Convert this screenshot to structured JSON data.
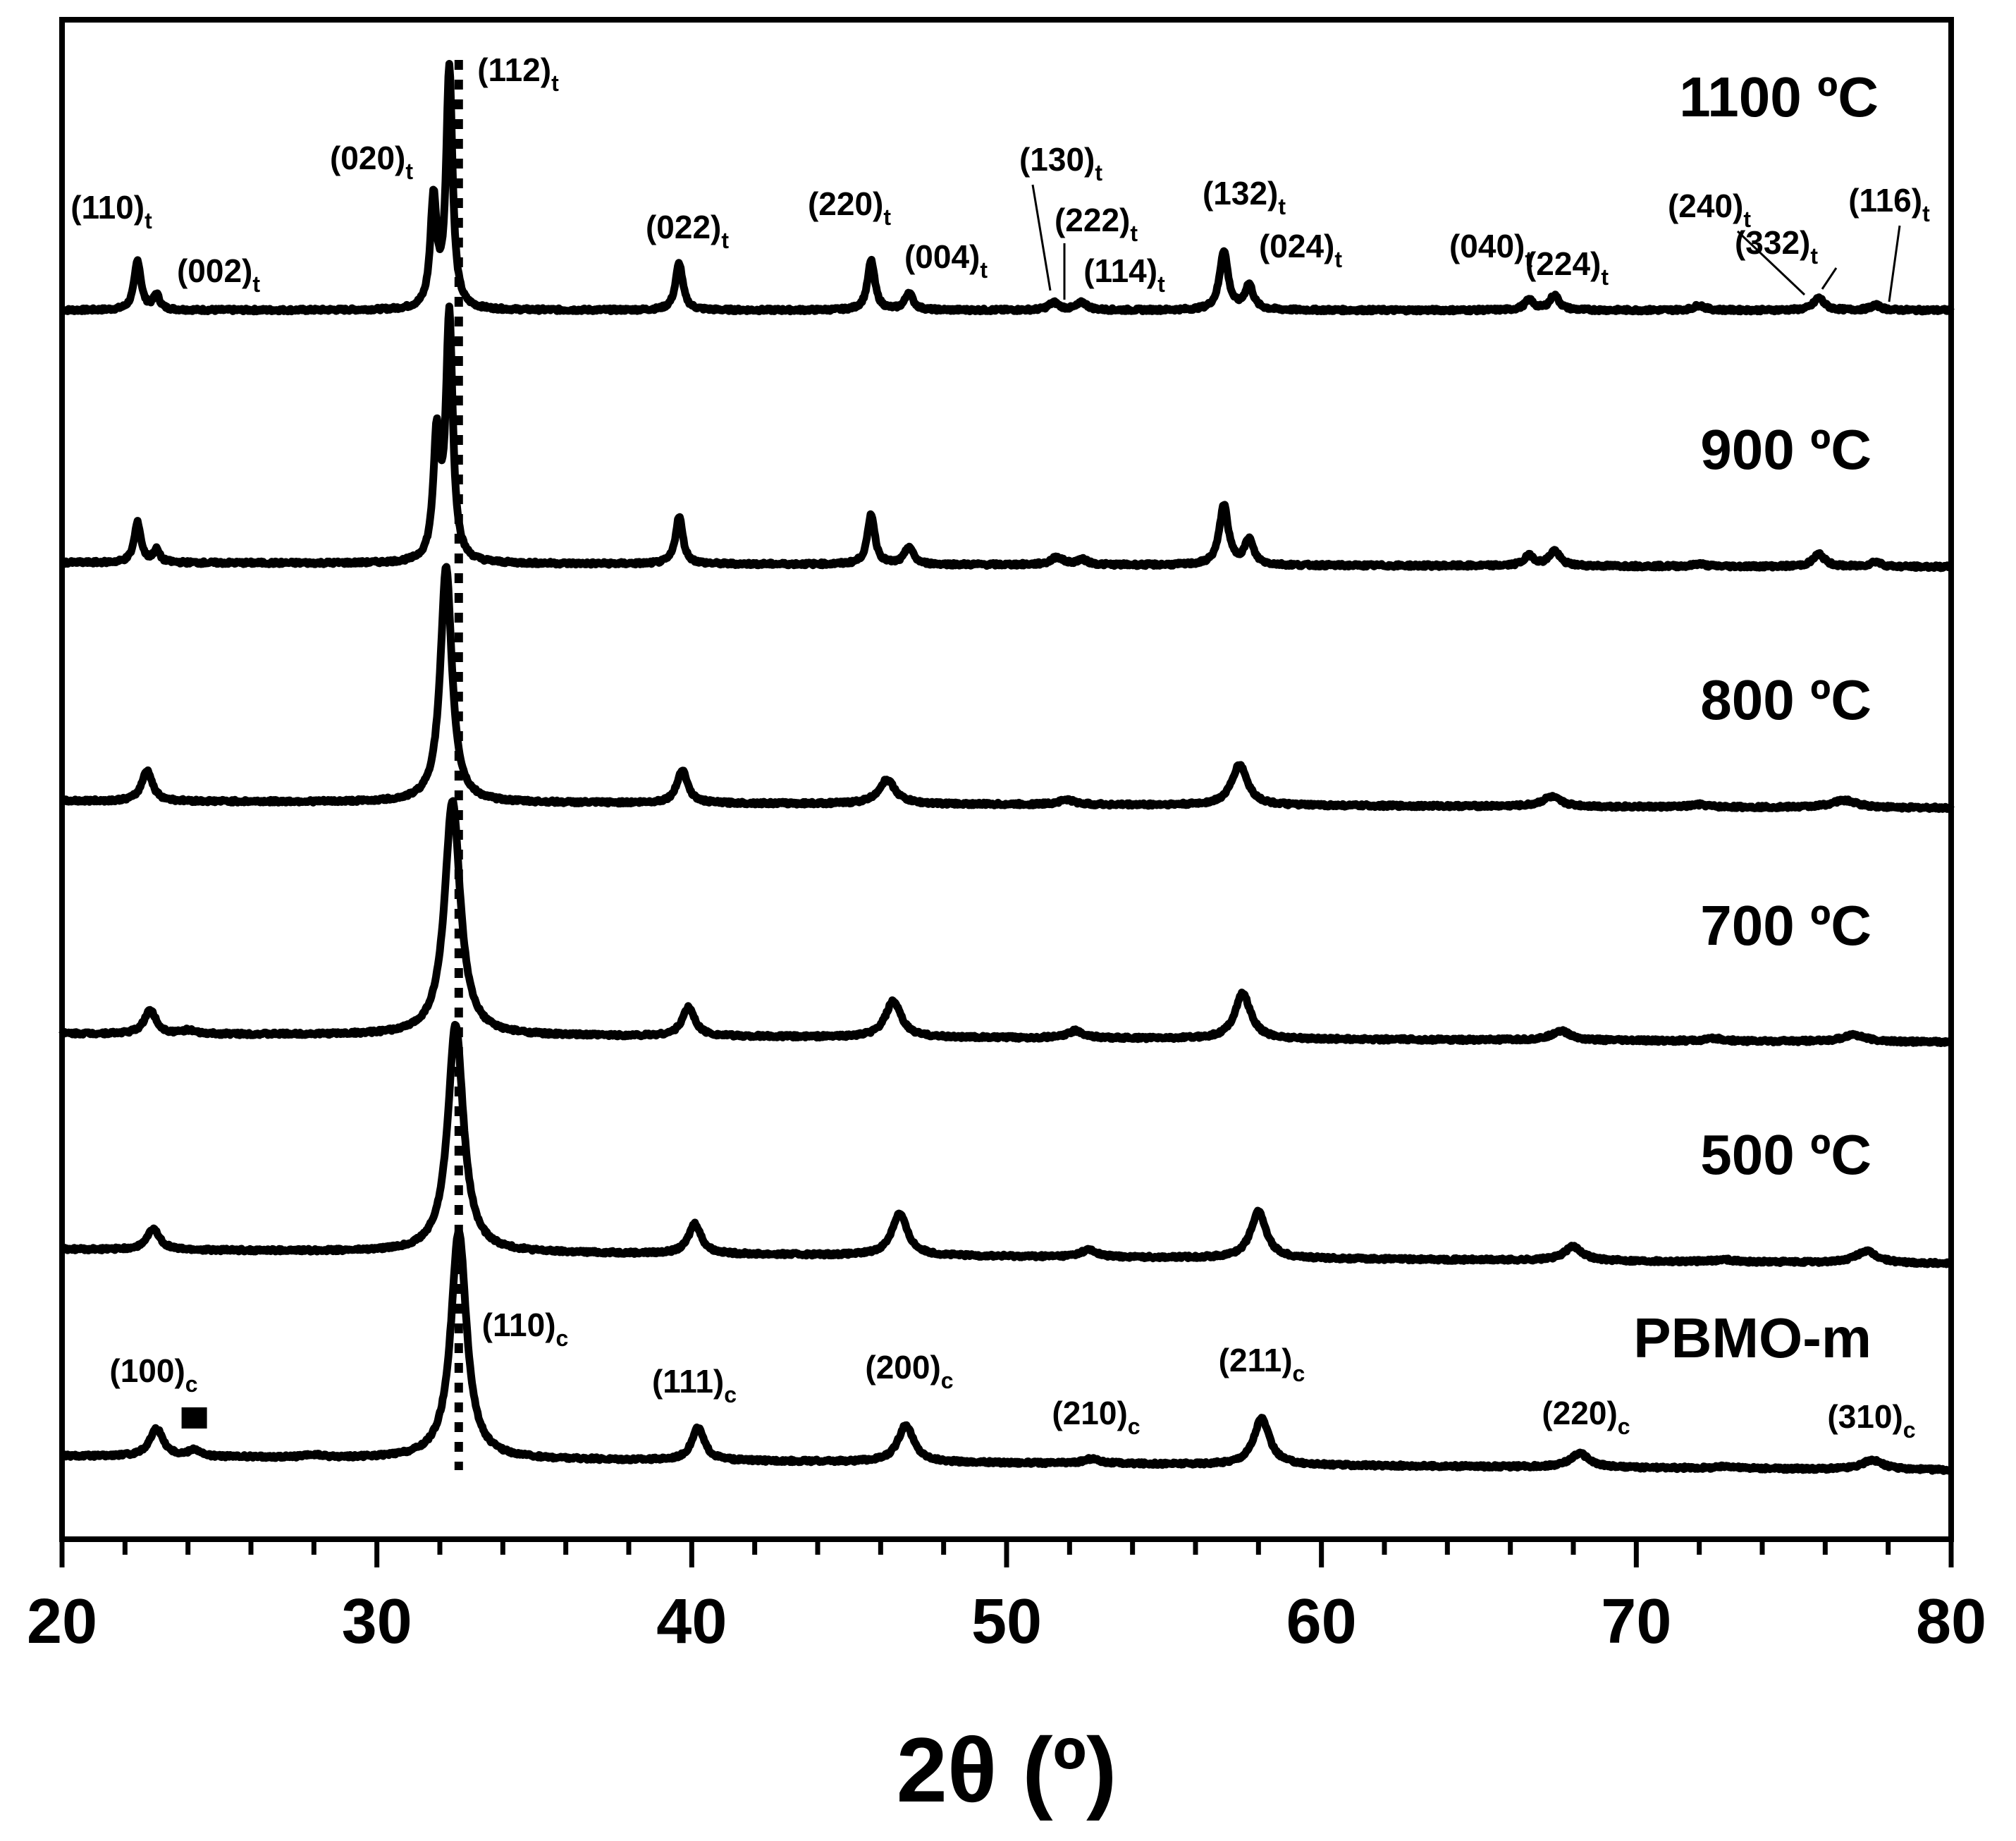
{
  "chart_data": {
    "type": "line",
    "xlabel": "2θ (º)",
    "ylabel": "",
    "xlim": [
      20,
      80
    ],
    "x_ticks": [
      "20",
      "30",
      "40",
      "50",
      "60",
      "70",
      "80"
    ],
    "dotted_reference_line_x": 32.6,
    "impurity_marker": {
      "symbol": "■",
      "x": 24.2,
      "series": "PBMO-m"
    },
    "series": [
      {
        "name": "1100 ºC",
        "peaks": [
          {
            "pos": 22.4,
            "h": 0.2,
            "w": 0.13,
            "label": "(110)",
            "sub": "t"
          },
          {
            "pos": 23.0,
            "h": 0.06,
            "w": 0.12,
            "label": "(002)",
            "sub": "t"
          },
          {
            "pos": 31.8,
            "h": 0.44,
            "w": 0.12,
            "label": "(020)",
            "sub": "t"
          },
          {
            "pos": 32.3,
            "h": 0.98,
            "w": 0.12,
            "label": "(112)",
            "sub": "t"
          },
          {
            "pos": 39.6,
            "h": 0.19,
            "w": 0.14,
            "label": "(022)",
            "sub": "t"
          },
          {
            "pos": 45.7,
            "h": 0.2,
            "w": 0.14,
            "label": "(220)",
            "sub": "t"
          },
          {
            "pos": 46.9,
            "h": 0.07,
            "w": 0.15,
            "label": "(004)",
            "sub": "t"
          },
          {
            "pos": 51.5,
            "h": 0.03,
            "w": 0.2,
            "label": "(130)",
            "sub": "t"
          },
          {
            "pos": 52.4,
            "h": 0.03,
            "w": 0.2,
            "label": "(222)",
            "sub": "t"
          },
          {
            "pos": 52.8,
            "h": 0.0,
            "w": 0.2,
            "label": "(114)",
            "sub": "t"
          },
          {
            "pos": 56.9,
            "h": 0.24,
            "w": 0.16,
            "label": "(132)",
            "sub": "t"
          },
          {
            "pos": 57.7,
            "h": 0.1,
            "w": 0.16,
            "label": "(024)",
            "sub": "t"
          },
          {
            "pos": 66.6,
            "h": 0.04,
            "w": 0.18,
            "label": "(040)",
            "sub": "t"
          },
          {
            "pos": 67.4,
            "h": 0.06,
            "w": 0.18,
            "label": "(224)",
            "sub": "t"
          },
          {
            "pos": 72.0,
            "h": 0.02,
            "w": 0.2,
            "label": "",
            "sub": ""
          },
          {
            "pos": 75.4,
            "h": 0.0,
            "w": 0.2,
            "label": "(240)",
            "sub": "t"
          },
          {
            "pos": 75.8,
            "h": 0.05,
            "w": 0.2,
            "label": "(332)",
            "sub": "t"
          },
          {
            "pos": 77.6,
            "h": 0.02,
            "w": 0.2,
            "label": "(116)",
            "sub": "t"
          }
        ]
      },
      {
        "name": "900 ºC",
        "peaks": [
          {
            "pos": 22.4,
            "h": 0.16,
            "w": 0.13
          },
          {
            "pos": 23.0,
            "h": 0.05,
            "w": 0.12
          },
          {
            "pos": 31.9,
            "h": 0.48,
            "w": 0.13
          },
          {
            "pos": 32.3,
            "h": 0.98,
            "w": 0.13
          },
          {
            "pos": 39.6,
            "h": 0.19,
            "w": 0.14
          },
          {
            "pos": 45.7,
            "h": 0.2,
            "w": 0.14
          },
          {
            "pos": 46.9,
            "h": 0.07,
            "w": 0.16
          },
          {
            "pos": 51.6,
            "h": 0.03,
            "w": 0.22
          },
          {
            "pos": 52.4,
            "h": 0.02,
            "w": 0.22
          },
          {
            "pos": 56.9,
            "h": 0.24,
            "w": 0.17
          },
          {
            "pos": 57.7,
            "h": 0.1,
            "w": 0.17
          },
          {
            "pos": 66.6,
            "h": 0.04,
            "w": 0.2
          },
          {
            "pos": 67.4,
            "h": 0.06,
            "w": 0.2
          },
          {
            "pos": 72.0,
            "h": 0.01,
            "w": 0.2
          },
          {
            "pos": 75.8,
            "h": 0.05,
            "w": 0.22
          },
          {
            "pos": 77.6,
            "h": 0.02,
            "w": 0.2
          }
        ]
      },
      {
        "name": "800 ºC",
        "peaks": [
          {
            "pos": 22.7,
            "h": 0.13,
            "w": 0.2
          },
          {
            "pos": 32.2,
            "h": 0.98,
            "w": 0.22
          },
          {
            "pos": 39.7,
            "h": 0.14,
            "w": 0.2
          },
          {
            "pos": 46.2,
            "h": 0.1,
            "w": 0.32
          },
          {
            "pos": 51.9,
            "h": 0.02,
            "w": 0.3
          },
          {
            "pos": 57.4,
            "h": 0.17,
            "w": 0.3
          },
          {
            "pos": 67.3,
            "h": 0.04,
            "w": 0.35
          },
          {
            "pos": 72.0,
            "h": 0.01,
            "w": 0.3
          },
          {
            "pos": 76.6,
            "h": 0.03,
            "w": 0.5
          }
        ]
      },
      {
        "name": "700 ºC",
        "peaks": [
          {
            "pos": 22.8,
            "h": 0.1,
            "w": 0.22
          },
          {
            "pos": 24.0,
            "h": 0.015,
            "w": 0.2
          },
          {
            "pos": 32.4,
            "h": 0.98,
            "w": 0.3
          },
          {
            "pos": 39.9,
            "h": 0.12,
            "w": 0.24
          },
          {
            "pos": 46.4,
            "h": 0.15,
            "w": 0.3
          },
          {
            "pos": 52.2,
            "h": 0.03,
            "w": 0.3
          },
          {
            "pos": 57.5,
            "h": 0.19,
            "w": 0.3
          },
          {
            "pos": 67.6,
            "h": 0.04,
            "w": 0.35
          },
          {
            "pos": 72.5,
            "h": 0.01,
            "w": 0.3
          },
          {
            "pos": 76.9,
            "h": 0.03,
            "w": 0.4
          }
        ]
      },
      {
        "name": "500 ºC",
        "peaks": [
          {
            "pos": 22.9,
            "h": 0.09,
            "w": 0.24
          },
          {
            "pos": 32.5,
            "h": 0.98,
            "w": 0.3
          },
          {
            "pos": 40.1,
            "h": 0.13,
            "w": 0.24
          },
          {
            "pos": 46.6,
            "h": 0.18,
            "w": 0.3
          },
          {
            "pos": 52.6,
            "h": 0.03,
            "w": 0.3
          },
          {
            "pos": 58.0,
            "h": 0.2,
            "w": 0.3
          },
          {
            "pos": 68.0,
            "h": 0.06,
            "w": 0.35
          },
          {
            "pos": 72.8,
            "h": 0.01,
            "w": 0.3
          },
          {
            "pos": 77.3,
            "h": 0.05,
            "w": 0.4
          }
        ]
      },
      {
        "name": "PBMO-m",
        "peaks": [
          {
            "pos": 23.0,
            "h": 0.12,
            "w": 0.26,
            "label": "(100)",
            "sub": "c"
          },
          {
            "pos": 24.2,
            "h": 0.03,
            "w": 0.2
          },
          {
            "pos": 28.0,
            "h": 0.01,
            "w": 0.3
          },
          {
            "pos": 32.6,
            "h": 0.98,
            "w": 0.3,
            "label": "(110)",
            "sub": "c"
          },
          {
            "pos": 40.2,
            "h": 0.14,
            "w": 0.24,
            "label": "(111)",
            "sub": "c"
          },
          {
            "pos": 46.8,
            "h": 0.16,
            "w": 0.3,
            "label": "(200)",
            "sub": "c"
          },
          {
            "pos": 52.7,
            "h": 0.02,
            "w": 0.3,
            "label": "(210)",
            "sub": "c"
          },
          {
            "pos": 58.1,
            "h": 0.2,
            "w": 0.3,
            "label": "(211)",
            "sub": "c"
          },
          {
            "pos": 68.2,
            "h": 0.06,
            "w": 0.35,
            "label": "(220)",
            "sub": "c"
          },
          {
            "pos": 72.9,
            "h": 0.01,
            "w": 0.3
          },
          {
            "pos": 77.5,
            "h": 0.04,
            "w": 0.4,
            "label": "(310)",
            "sub": "c"
          }
        ]
      }
    ]
  }
}
